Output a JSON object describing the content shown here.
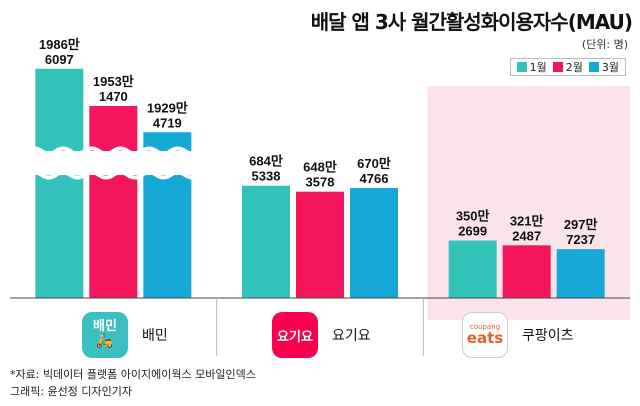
{
  "header": {
    "title": "배달 앱 3사 월간활성화이용자수(MAU)",
    "unit": "(단위: 명)"
  },
  "colors": {
    "m1": "#34c3bb",
    "m2": "#f5155a",
    "m3": "#17a9d6",
    "coupang_bg": "#fbe3ea"
  },
  "chart_data": {
    "type": "bar",
    "categories": [
      "배민",
      "요기요",
      "쿠팡이츠"
    ],
    "series": [
      {
        "name": "1월",
        "values": [
          19866097,
          6845338,
          3502699
        ],
        "labels": [
          [
            "1986만",
            "6097"
          ],
          [
            "684만",
            "5338"
          ],
          [
            "350만",
            "2699"
          ]
        ]
      },
      {
        "name": "2월",
        "values": [
          19531470,
          6483578,
          3212487
        ],
        "labels": [
          [
            "1953만",
            "1470"
          ],
          [
            "648만",
            "3578"
          ],
          [
            "321만",
            "2487"
          ]
        ]
      },
      {
        "name": "3월",
        "values": [
          19294719,
          6704766,
          2977237
        ],
        "labels": [
          [
            "1929만",
            "4719"
          ],
          [
            "670만",
            "4766"
          ],
          [
            "297만",
            "7237"
          ]
        ]
      }
    ],
    "axis_break": true,
    "legend_position": "top-right"
  },
  "brands": {
    "baemin": {
      "name": "배민",
      "logo_text": "배민"
    },
    "yogiyo": {
      "name": "요기요",
      "logo_text": "요기요"
    },
    "coupang": {
      "name": "쿠팡이츠",
      "logo_small": "coupang",
      "logo_big": "eats"
    }
  },
  "footer": {
    "source": "*자료: 빅데이터 플랫폼 아이지에이웍스 모바일인덱스",
    "credit": "그래픽: 윤선정 디자인기자"
  }
}
